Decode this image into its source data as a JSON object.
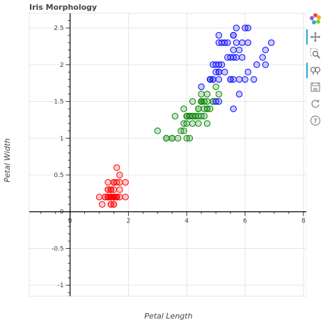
{
  "chart_data": {
    "type": "scatter",
    "title": "Iris Morphology",
    "xlabel": "Petal Length",
    "ylabel": "Petal Width",
    "xlim": [
      -1.4,
      8.1
    ],
    "ylim": [
      -1.15,
      2.7
    ],
    "xticks": [
      "0",
      "2",
      "4",
      "6",
      "8"
    ],
    "yticks": [
      "-1",
      "-0.5",
      "0",
      "0.5",
      "1",
      "1.5",
      "2",
      "2.5"
    ],
    "grid": true,
    "series": [
      {
        "color": "#ff0000",
        "points": [
          [
            1.4,
            0.2
          ],
          [
            1.4,
            0.2
          ],
          [
            1.3,
            0.2
          ],
          [
            1.5,
            0.2
          ],
          [
            1.4,
            0.2
          ],
          [
            1.7,
            0.4
          ],
          [
            1.4,
            0.3
          ],
          [
            1.5,
            0.2
          ],
          [
            1.4,
            0.2
          ],
          [
            1.5,
            0.1
          ],
          [
            1.5,
            0.2
          ],
          [
            1.6,
            0.2
          ],
          [
            1.4,
            0.1
          ],
          [
            1.1,
            0.1
          ],
          [
            1.2,
            0.2
          ],
          [
            1.5,
            0.4
          ],
          [
            1.3,
            0.4
          ],
          [
            1.4,
            0.3
          ],
          [
            1.7,
            0.3
          ],
          [
            1.5,
            0.3
          ],
          [
            1.7,
            0.2
          ],
          [
            1.5,
            0.4
          ],
          [
            1.0,
            0.2
          ],
          [
            1.7,
            0.5
          ],
          [
            1.9,
            0.2
          ],
          [
            1.6,
            0.2
          ],
          [
            1.6,
            0.4
          ],
          [
            1.5,
            0.2
          ],
          [
            1.4,
            0.2
          ],
          [
            1.6,
            0.2
          ],
          [
            1.6,
            0.2
          ],
          [
            1.5,
            0.4
          ],
          [
            1.5,
            0.1
          ],
          [
            1.4,
            0.2
          ],
          [
            1.5,
            0.2
          ],
          [
            1.2,
            0.2
          ],
          [
            1.3,
            0.2
          ],
          [
            1.4,
            0.1
          ],
          [
            1.3,
            0.2
          ],
          [
            1.5,
            0.2
          ],
          [
            1.3,
            0.3
          ],
          [
            1.3,
            0.3
          ],
          [
            1.3,
            0.2
          ],
          [
            1.6,
            0.6
          ],
          [
            1.9,
            0.4
          ],
          [
            1.4,
            0.3
          ],
          [
            1.6,
            0.2
          ],
          [
            1.4,
            0.2
          ],
          [
            1.5,
            0.2
          ],
          [
            1.4,
            0.2
          ]
        ]
      },
      {
        "color": "#008000",
        "points": [
          [
            4.7,
            1.4
          ],
          [
            4.5,
            1.5
          ],
          [
            4.9,
            1.5
          ],
          [
            4.0,
            1.3
          ],
          [
            4.6,
            1.5
          ],
          [
            4.5,
            1.3
          ],
          [
            4.7,
            1.6
          ],
          [
            3.3,
            1.0
          ],
          [
            4.6,
            1.3
          ],
          [
            3.9,
            1.4
          ],
          [
            3.5,
            1.0
          ],
          [
            4.2,
            1.5
          ],
          [
            4.0,
            1.0
          ],
          [
            4.7,
            1.4
          ],
          [
            3.6,
            1.3
          ],
          [
            4.4,
            1.4
          ],
          [
            4.5,
            1.5
          ],
          [
            4.1,
            1.0
          ],
          [
            4.5,
            1.5
          ],
          [
            3.9,
            1.1
          ],
          [
            4.8,
            1.8
          ],
          [
            4.0,
            1.3
          ],
          [
            4.9,
            1.5
          ],
          [
            4.7,
            1.2
          ],
          [
            4.3,
            1.3
          ],
          [
            4.4,
            1.4
          ],
          [
            4.8,
            1.4
          ],
          [
            5.0,
            1.7
          ],
          [
            4.5,
            1.5
          ],
          [
            3.5,
            1.0
          ],
          [
            3.8,
            1.1
          ],
          [
            3.7,
            1.0
          ],
          [
            3.9,
            1.2
          ],
          [
            5.1,
            1.6
          ],
          [
            4.5,
            1.5
          ],
          [
            4.5,
            1.6
          ],
          [
            4.7,
            1.5
          ],
          [
            4.4,
            1.3
          ],
          [
            4.1,
            1.3
          ],
          [
            4.0,
            1.3
          ],
          [
            4.4,
            1.2
          ],
          [
            4.6,
            1.4
          ],
          [
            4.0,
            1.2
          ],
          [
            3.3,
            1.0
          ],
          [
            4.2,
            1.3
          ],
          [
            4.2,
            1.2
          ],
          [
            4.2,
            1.3
          ],
          [
            4.3,
            1.3
          ],
          [
            3.0,
            1.1
          ],
          [
            4.1,
            1.3
          ]
        ]
      },
      {
        "color": "#0000ff",
        "points": [
          [
            6.0,
            2.5
          ],
          [
            5.1,
            1.9
          ],
          [
            5.9,
            2.1
          ],
          [
            5.6,
            1.8
          ],
          [
            5.8,
            2.2
          ],
          [
            6.6,
            2.1
          ],
          [
            4.5,
            1.7
          ],
          [
            6.3,
            1.8
          ],
          [
            5.8,
            1.8
          ],
          [
            6.1,
            2.5
          ],
          [
            5.1,
            2.0
          ],
          [
            5.3,
            1.9
          ],
          [
            5.5,
            2.1
          ],
          [
            5.0,
            2.0
          ],
          [
            5.1,
            2.4
          ],
          [
            5.3,
            2.3
          ],
          [
            5.5,
            1.8
          ],
          [
            6.7,
            2.2
          ],
          [
            6.9,
            2.3
          ],
          [
            5.0,
            1.5
          ],
          [
            5.7,
            2.3
          ],
          [
            4.9,
            2.0
          ],
          [
            6.7,
            2.0
          ],
          [
            4.9,
            1.8
          ],
          [
            5.7,
            2.1
          ],
          [
            6.0,
            1.8
          ],
          [
            4.8,
            1.8
          ],
          [
            4.9,
            1.8
          ],
          [
            5.6,
            2.1
          ],
          [
            5.8,
            1.6
          ],
          [
            6.1,
            1.9
          ],
          [
            6.4,
            2.0
          ],
          [
            5.6,
            2.2
          ],
          [
            5.1,
            1.5
          ],
          [
            5.6,
            1.4
          ],
          [
            6.1,
            2.3
          ],
          [
            5.6,
            2.4
          ],
          [
            5.5,
            1.8
          ],
          [
            4.8,
            1.8
          ],
          [
            5.4,
            2.1
          ],
          [
            5.6,
            2.4
          ],
          [
            5.1,
            2.3
          ],
          [
            5.1,
            1.9
          ],
          [
            5.9,
            2.3
          ],
          [
            5.7,
            2.5
          ],
          [
            5.2,
            2.3
          ],
          [
            5.0,
            1.9
          ],
          [
            5.2,
            2.0
          ],
          [
            5.4,
            2.3
          ],
          [
            5.1,
            1.8
          ]
        ]
      }
    ]
  },
  "toolbar": {
    "tools": [
      "bokeh-logo-icon",
      "pan-icon",
      "box-zoom-icon",
      "wheel-zoom-icon",
      "save-icon",
      "reset-icon",
      "help-icon"
    ]
  }
}
